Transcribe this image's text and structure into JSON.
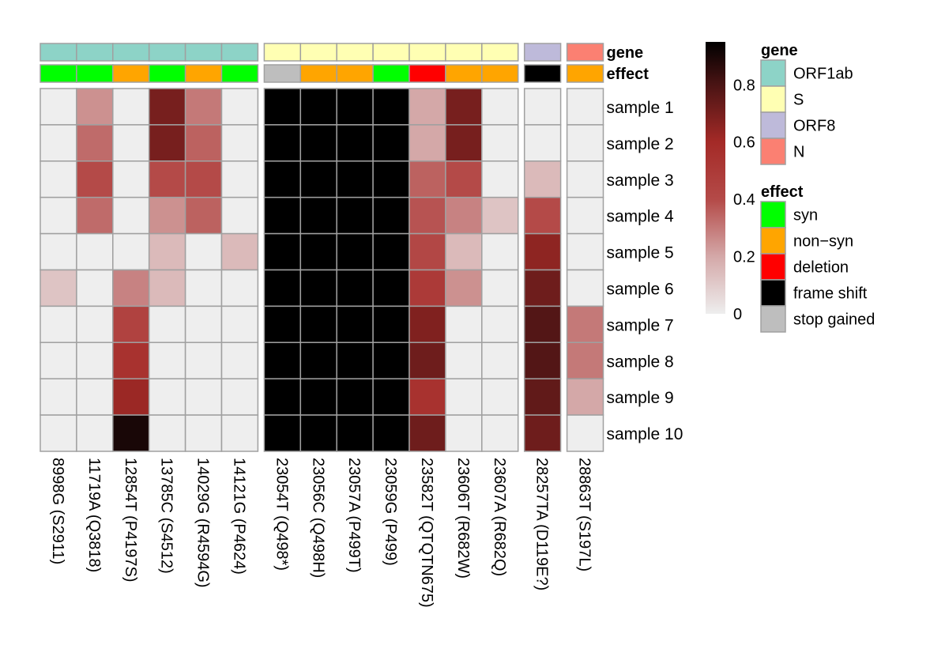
{
  "chart_data": {
    "type": "heatmap",
    "rows": [
      "sample 1",
      "sample 2",
      "sample 3",
      "sample 4",
      "sample 5",
      "sample 6",
      "sample 7",
      "sample 8",
      "sample 9",
      "sample 10"
    ],
    "columns": [
      "8998G (S2911)",
      "11719A (Q3818)",
      "12854T (P4197S)",
      "13785C (S4512)",
      "14029G (R4594G)",
      "14121G (P4624)",
      "23054T (Q498*)",
      "23056C (Q498H)",
      "23057A (P499T)",
      "23059G (P499)",
      "23582T (QTQTN675)",
      "23606T (R682W)",
      "23607A (R682Q)",
      "28257TA (D119E?)",
      "28863T (S197L)"
    ],
    "column_groups": [
      [
        0,
        5
      ],
      [
        6,
        12
      ],
      [
        13,
        13
      ],
      [
        14,
        14
      ]
    ],
    "values": [
      [
        0.0,
        0.25,
        0.0,
        0.7,
        0.3,
        0.0,
        0.98,
        0.98,
        0.97,
        0.98,
        0.2,
        0.7,
        0.0,
        0.0,
        0.0
      ],
      [
        0.0,
        0.33,
        0.0,
        0.7,
        0.35,
        0.0,
        0.98,
        0.98,
        0.98,
        0.98,
        0.2,
        0.7,
        0.0,
        0.0,
        0.0
      ],
      [
        0.0,
        0.4,
        0.0,
        0.4,
        0.4,
        0.0,
        0.98,
        0.98,
        0.98,
        0.98,
        0.35,
        0.4,
        0.0,
        0.15,
        0.0
      ],
      [
        0.0,
        0.33,
        0.0,
        0.25,
        0.35,
        0.0,
        0.98,
        0.98,
        0.98,
        0.98,
        0.38,
        0.28,
        0.12,
        0.4,
        0.0
      ],
      [
        0.0,
        0.0,
        0.0,
        0.15,
        0.0,
        0.15,
        0.98,
        0.98,
        0.97,
        0.98,
        0.42,
        0.15,
        0.0,
        0.65,
        0.0
      ],
      [
        0.12,
        0.0,
        0.28,
        0.15,
        0.0,
        0.0,
        0.98,
        0.98,
        0.98,
        0.98,
        0.5,
        0.25,
        0.0,
        0.72,
        0.0
      ],
      [
        0.0,
        0.0,
        0.45,
        0.0,
        0.0,
        0.0,
        0.98,
        0.98,
        0.98,
        0.98,
        0.68,
        0.0,
        0.0,
        0.78,
        0.3
      ],
      [
        0.0,
        0.0,
        0.55,
        0.0,
        0.0,
        0.0,
        0.98,
        0.98,
        0.98,
        0.98,
        0.72,
        0.0,
        0.0,
        0.78,
        0.3
      ],
      [
        0.0,
        0.0,
        0.62,
        0.0,
        0.0,
        0.0,
        0.98,
        0.98,
        0.98,
        0.98,
        0.55,
        0.0,
        0.0,
        0.75,
        0.2
      ],
      [
        0.0,
        0.0,
        0.9,
        0.0,
        0.0,
        0.0,
        0.98,
        0.98,
        0.98,
        0.98,
        0.72,
        0.0,
        0.0,
        0.72,
        0.0
      ]
    ],
    "annotations": {
      "gene": {
        "label": "gene",
        "values": [
          "ORF1ab",
          "ORF1ab",
          "ORF1ab",
          "ORF1ab",
          "ORF1ab",
          "ORF1ab",
          "S",
          "S",
          "S",
          "S",
          "S",
          "S",
          "S",
          "ORF8",
          "N"
        ]
      },
      "effect": {
        "label": "effect",
        "values": [
          "syn",
          "syn",
          "non−syn",
          "syn",
          "non−syn",
          "syn",
          "stop gained",
          "non−syn",
          "non−syn",
          "syn",
          "deletion",
          "non−syn",
          "non−syn",
          "frame shift",
          "non−syn"
        ]
      }
    },
    "color_scale": {
      "range": [
        0,
        0.95
      ],
      "ticks": [
        "0",
        "0.2",
        "0.4",
        "0.6",
        "0.8"
      ],
      "tick_values": [
        0,
        0.2,
        0.4,
        0.6,
        0.8
      ],
      "stops": [
        {
          "value": 0.0,
          "color": "#eeeeee"
        },
        {
          "value": 0.2,
          "color": "#d4a8a8"
        },
        {
          "value": 0.4,
          "color": "#b44a48"
        },
        {
          "value": 0.6,
          "color": "#a42a27"
        },
        {
          "value": 0.8,
          "color": "#4a1414"
        },
        {
          "value": 0.95,
          "color": "#000000"
        }
      ]
    },
    "legends": {
      "gene": {
        "title": "gene",
        "items": [
          {
            "label": "ORF1ab",
            "color": "#8dd3c7"
          },
          {
            "label": "S",
            "color": "#ffffb3"
          },
          {
            "label": "ORF8",
            "color": "#bebada"
          },
          {
            "label": "N",
            "color": "#fb8072"
          }
        ]
      },
      "effect": {
        "title": "effect",
        "items": [
          {
            "label": "syn",
            "color": "#00ff00"
          },
          {
            "label": "non−syn",
            "color": "#ffa500"
          },
          {
            "label": "deletion",
            "color": "#ff0000"
          },
          {
            "label": "frame shift",
            "color": "#000000"
          },
          {
            "label": "stop gained",
            "color": "#bebebe"
          }
        ]
      }
    },
    "colors": {
      "cell_border": "#a0a0a0",
      "annotation_border": "#a0a0a0"
    }
  }
}
